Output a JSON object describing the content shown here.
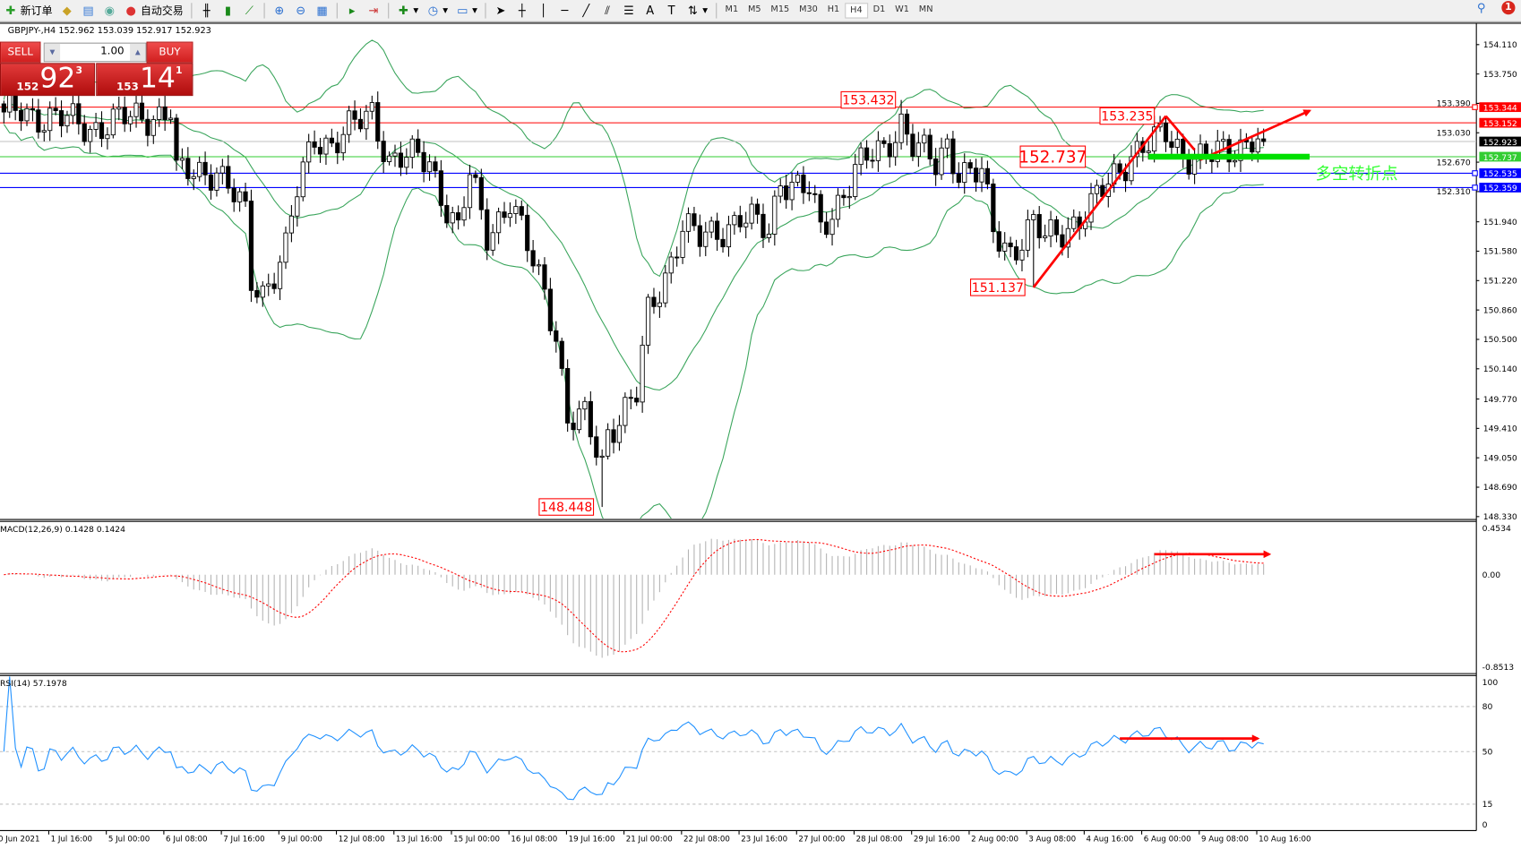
{
  "toolbar": {
    "new_order": "新订单",
    "auto_trading": "自动交易",
    "timeframes": [
      "M1",
      "M5",
      "M15",
      "M30",
      "H1",
      "H4",
      "D1",
      "W1",
      "MN"
    ],
    "active_timeframe": "H4",
    "notification_count": "1"
  },
  "chart": {
    "symbol_info": "GBPJPY-,H4  152.962 153.039 152.917 152.923"
  },
  "trade_panel": {
    "sell": "SELL",
    "buy": "BUY",
    "lot": "1.00",
    "sell_prefix": "152",
    "sell_big": "92",
    "sell_sup": "3",
    "buy_prefix": "153",
    "buy_big": "14",
    "buy_sup": "1"
  },
  "chart_data": {
    "type": "candlestick",
    "symbol": "GBPJPY-",
    "timeframe": "H4",
    "last_close": 152.923,
    "price_axis": {
      "range": [
        148.33,
        154.11
      ],
      "ticks": [
        "154.110",
        "153.750",
        "153.390",
        "153.030",
        "152.670",
        "152.310",
        "151.940",
        "151.580",
        "151.220",
        "150.860",
        "150.500",
        "150.140",
        "149.770",
        "149.410",
        "149.050",
        "148.690",
        "148.330"
      ]
    },
    "key_closes": [
      [
        0,
        153.2
      ],
      [
        3,
        153.3
      ],
      [
        15,
        153.1
      ],
      [
        29,
        153.3
      ],
      [
        30,
        152.5
      ],
      [
        37,
        152.6
      ],
      [
        42,
        152.0
      ],
      [
        43,
        151.2
      ],
      [
        45,
        151.1
      ],
      [
        49,
        151.6
      ],
      [
        51,
        152.3
      ],
      [
        54,
        153.0
      ],
      [
        57,
        152.9
      ],
      [
        61,
        153.1
      ],
      [
        64,
        153.3
      ],
      [
        67,
        152.7
      ],
      [
        74,
        152.7
      ],
      [
        76,
        152.3
      ],
      [
        79,
        151.8
      ],
      [
        81,
        152.5
      ],
      [
        84,
        151.8
      ],
      [
        88,
        152.2
      ],
      [
        89,
        152.0
      ],
      [
        91,
        151.6
      ],
      [
        94,
        151.1
      ],
      [
        96,
        150.6
      ],
      [
        98,
        149.5
      ],
      [
        101,
        149.5
      ],
      [
        104,
        149.0
      ],
      [
        105,
        149.4
      ],
      [
        110,
        149.8
      ],
      [
        112,
        150.8
      ],
      [
        115,
        151.3
      ],
      [
        118,
        151.9
      ],
      [
        121,
        151.7
      ],
      [
        128,
        152.0
      ],
      [
        133,
        151.8
      ],
      [
        135,
        152.5
      ],
      [
        140,
        152.3
      ],
      [
        142,
        151.8
      ],
      [
        145,
        152.2
      ],
      [
        148,
        152.6
      ],
      [
        153,
        152.8
      ],
      [
        156,
        153.2
      ],
      [
        158,
        152.9
      ],
      [
        162,
        152.6
      ],
      [
        164,
        152.9
      ],
      [
        166,
        152.6
      ],
      [
        170,
        152.5
      ],
      [
        172,
        151.8
      ],
      [
        175,
        151.6
      ],
      [
        179,
        151.9
      ],
      [
        181,
        151.7
      ],
      [
        185,
        151.9
      ],
      [
        189,
        152.1
      ],
      [
        192,
        152.4
      ],
      [
        196,
        152.8
      ],
      [
        200,
        152.9
      ],
      [
        202,
        153.0
      ],
      [
        205,
        152.8
      ],
      [
        209,
        152.7
      ],
      [
        213,
        152.8
      ],
      [
        217,
        153.0
      ],
      [
        219,
        152.923
      ]
    ],
    "horizontal_lines": [
      {
        "price": "153.344",
        "color": "#ff0000"
      },
      {
        "price": "153.152",
        "color": "#ff0000"
      },
      {
        "price": "152.923",
        "color": "#000000"
      },
      {
        "price": "152.737",
        "color": "#32cd32"
      },
      {
        "price": "152.535",
        "color": "#0000ff"
      },
      {
        "price": "152.359",
        "color": "#0000ff"
      }
    ],
    "price_labels": [
      {
        "text": "153.432",
        "bar": 155,
        "price": 153.432,
        "large": false
      },
      {
        "text": "153.235",
        "bar": 200,
        "price": 153.235,
        "large": false
      },
      {
        "text": "152.737",
        "bar": 188,
        "price": 152.737,
        "large": true
      },
      {
        "text": "151.137",
        "bar": 177.5,
        "price": 151.137,
        "large": false
      },
      {
        "text": "148.448",
        "bar": 102.5,
        "price": 148.448,
        "large": false
      }
    ],
    "trend_lines": [
      {
        "from": [
          179,
          151.137
        ],
        "to": [
          202,
          153.235
        ],
        "arrow": false
      },
      {
        "from": [
          202,
          153.235
        ],
        "to": [
          207,
          152.82
        ],
        "arrow": false
      },
      {
        "from": [
          208,
          152.7
        ],
        "to": [
          227,
          153.3
        ],
        "arrow": true
      }
    ],
    "pivot_zone": {
      "price": 152.737,
      "from_bar": 199,
      "to_bar": 227,
      "label": "多空转折点",
      "color": "#00e000"
    },
    "bollinger": {
      "period": 20,
      "deviation": 2,
      "color": "#3aa55c"
    },
    "dates": [
      "30 Jun 2021",
      "1 Jul 16:00",
      "5 Jul 00:00",
      "6 Jul 08:00",
      "7 Jul 16:00",
      "9 Jul 00:00",
      "12 Jul 08:00",
      "13 Jul 16:00",
      "15 Jul 00:00",
      "16 Jul 08:00",
      "19 Jul 16:00",
      "21 Jul 00:00",
      "22 Jul 08:00",
      "23 Jul 16:00",
      "27 Jul 00:00",
      "28 Jul 08:00",
      "29 Jul 16:00",
      "2 Aug 00:00",
      "3 Aug 08:00",
      "4 Aug 16:00",
      "6 Aug 00:00",
      "9 Aug 08:00",
      "10 Aug 16:00"
    ],
    "macd": {
      "label": "MACD(12,26,9) 0.1428 0.1424",
      "range": [
        -0.8513,
        0.4534
      ],
      "ticks": [
        "0.4534",
        "0.00",
        "-0.8513"
      ],
      "arrow": {
        "from": [
          200,
          0.2
        ],
        "to": [
          220,
          0.2
        ]
      }
    },
    "rsi": {
      "label": "RSI(14) 57.1978",
      "range": [
        0,
        100
      ],
      "ticks": [
        "100",
        "80",
        "50",
        "15",
        "0"
      ],
      "levels": [
        80,
        50,
        15
      ],
      "arrow": {
        "from": [
          194,
          58.7
        ],
        "to": [
          218,
          58.7
        ]
      }
    }
  }
}
